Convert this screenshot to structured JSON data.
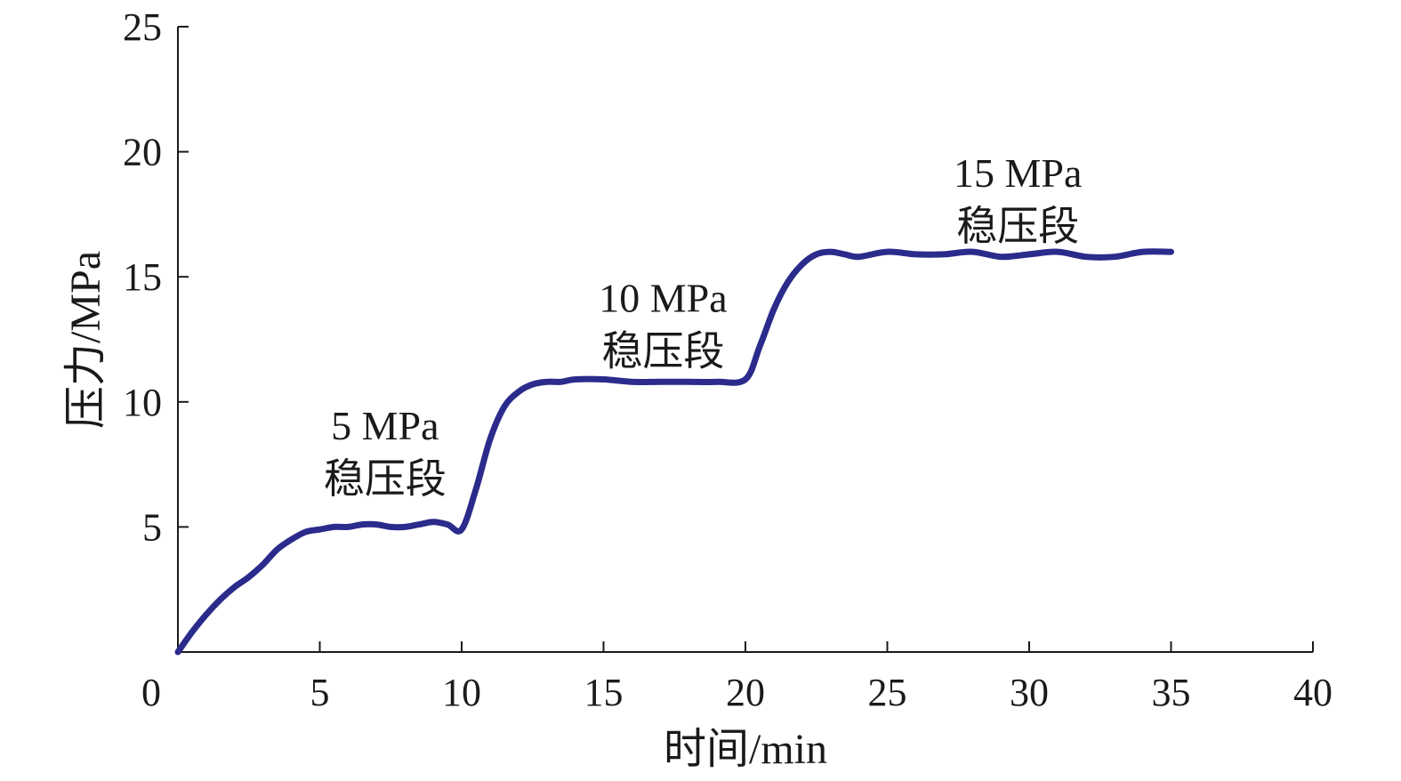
{
  "chart_data": {
    "type": "line",
    "xlabel": "时间/min",
    "ylabel": "压力/MPa",
    "xlim": [
      0,
      40
    ],
    "ylim": [
      0,
      25
    ],
    "x_ticks": [
      0,
      5,
      10,
      15,
      20,
      25,
      30,
      35,
      40
    ],
    "y_ticks": [
      5,
      10,
      15,
      20,
      25
    ],
    "grid": false,
    "series": [
      {
        "color": "#2b2b8c",
        "x": [
          0,
          0.5,
          1,
          1.5,
          2,
          2.5,
          3,
          3.5,
          4,
          4.5,
          5,
          5.5,
          6,
          6.5,
          7,
          7.5,
          8,
          8.5,
          9,
          9.5,
          10,
          10.5,
          11,
          11.5,
          12,
          12.5,
          13,
          13.5,
          14,
          15,
          16,
          17,
          18,
          19,
          20,
          20.5,
          21,
          21.5,
          22,
          22.5,
          23,
          23.5,
          24,
          25,
          26,
          27,
          28,
          29,
          30,
          31,
          32,
          33,
          34,
          35
        ],
        "y": [
          0,
          0.8,
          1.5,
          2.1,
          2.6,
          3.0,
          3.5,
          4.1,
          4.5,
          4.8,
          4.9,
          5.0,
          5.0,
          5.1,
          5.1,
          5.0,
          5.0,
          5.1,
          5.2,
          5.1,
          4.9,
          6.5,
          8.5,
          9.8,
          10.4,
          10.7,
          10.8,
          10.8,
          10.9,
          10.9,
          10.8,
          10.8,
          10.8,
          10.8,
          10.9,
          12.2,
          13.7,
          14.8,
          15.5,
          15.9,
          16.0,
          15.9,
          15.8,
          16.0,
          15.9,
          15.9,
          16.0,
          15.8,
          15.9,
          16.0,
          15.8,
          15.8,
          16.0,
          16.0
        ]
      }
    ],
    "annotations": [
      {
        "line1": "5 MPa",
        "line2": "稳压段",
        "x": 7.3,
        "y": 8.5
      },
      {
        "line1": "10 MPa",
        "line2": "稳压段",
        "x": 17.1,
        "y": 13.6
      },
      {
        "line1": "15 MPa",
        "line2": "稳压段",
        "x": 29.6,
        "y": 18.6
      }
    ]
  }
}
